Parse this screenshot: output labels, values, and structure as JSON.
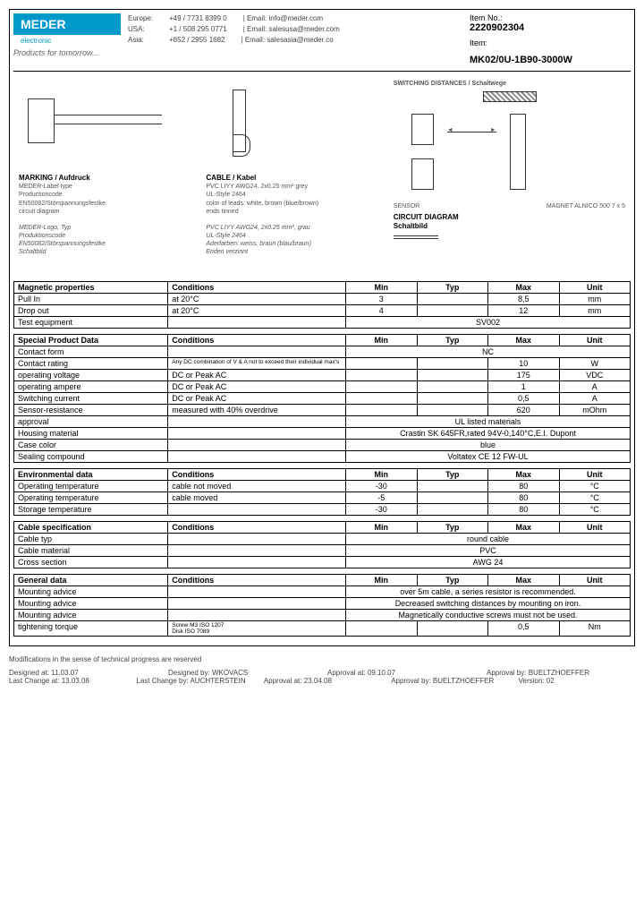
{
  "header": {
    "logo": "MEDER",
    "logo_sub": "electronic",
    "tagline": "Products for tomorrow...",
    "contacts": [
      {
        "region": "Europe:",
        "phone": "+49 / 7731 8399 0",
        "email": "Email: info@meder.com"
      },
      {
        "region": "USA:",
        "phone": "+1 / 508 295 0771",
        "email": "Email: salesusa@meder.com"
      },
      {
        "region": "Asia:",
        "phone": "+852 / 2955 1682",
        "email": "Email: salesasia@meder.co"
      }
    ],
    "item_no_label": "Item No.:",
    "item_no": "2220902304",
    "item_label": "Item:",
    "item_name": "MK02/0U-1B90-3000W"
  },
  "diagrams": {
    "marking_title": "MARKING / Aufdruck",
    "marking_text": "MEDER-Label type\nProductioncode\nEN50082/Störspannungsfestke\ncircuit diagram",
    "marking_text2": "MEDER-Logo, Typ\nProduktionscode\nEN50082/Störspannungsfestke\nSchaltbild",
    "cable_title": "CABLE / Kabel",
    "cable_text": "PVC LIYY AWG24, 2x0.25 mm² grey\nUL-Style 2464\ncolor of leads: white, brown (blue/brown)\nends tinned",
    "cable_text2": "PVC LIYY AWG24, 2x0.25 mm², grau\nUL-Style 2464\nAderfarben: weiss, braun (blau/braun)\nEnden verzinnt",
    "switching_title": "SWITCHING DISTANCES / Schaltwege",
    "circuit_title": "CIRCUIT DIAGRAM\nSchaltbild",
    "sensor_label": "SENSOR",
    "magnet_label": "MAGNET ALNICO 500 7 x 5"
  },
  "tables": [
    {
      "title": "Magnetic properties",
      "rows": [
        {
          "param": "Pull In",
          "cond": "at 20°C",
          "min": "3",
          "typ": "",
          "max": "8,5",
          "unit": "mm"
        },
        {
          "param": "Drop out",
          "cond": "at 20°C",
          "min": "4",
          "typ": "",
          "max": "12",
          "unit": "mm"
        },
        {
          "param": "Test equipment",
          "cond": "",
          "span": "SV002"
        }
      ]
    },
    {
      "title": "Special Product Data",
      "rows": [
        {
          "param": "Contact form",
          "cond": "",
          "span": "NC"
        },
        {
          "param": "Contact rating",
          "cond": "Any DC combination of V & A not to exceed their individual max's",
          "min": "",
          "typ": "",
          "max": "10",
          "unit": "W"
        },
        {
          "param": "operating voltage",
          "cond": "DC or Peak AC",
          "min": "",
          "typ": "",
          "max": "175",
          "unit": "VDC"
        },
        {
          "param": "operating ampere",
          "cond": "DC or Peak AC",
          "min": "",
          "typ": "",
          "max": "1",
          "unit": "A"
        },
        {
          "param": "Switching current",
          "cond": "DC or Peak AC",
          "min": "",
          "typ": "",
          "max": "0,5",
          "unit": "A"
        },
        {
          "param": "Sensor-resistance",
          "cond": "measured with 40% overdrive",
          "min": "",
          "typ": "",
          "max": "620",
          "unit": "mOhm"
        },
        {
          "param": "approval",
          "cond": "",
          "span": "UL listed materials"
        },
        {
          "param": "Housing material",
          "cond": "",
          "span": "Crastin SK 645FR,rated 94V-0,140°C,E.I. Dupont"
        },
        {
          "param": "Case color",
          "cond": "",
          "span": "blue"
        },
        {
          "param": "Sealing compound",
          "cond": "",
          "span": "Voltatex CE 12 FW-UL"
        }
      ]
    },
    {
      "title": "Environmental data",
      "rows": [
        {
          "param": "Operating temperature",
          "cond": "cable not moved",
          "min": "-30",
          "typ": "",
          "max": "80",
          "unit": "°C"
        },
        {
          "param": "Operating temperature",
          "cond": "cable moved",
          "min": "-5",
          "typ": "",
          "max": "80",
          "unit": "°C"
        },
        {
          "param": "Storage temperature",
          "cond": "",
          "min": "-30",
          "typ": "",
          "max": "80",
          "unit": "°C"
        }
      ]
    },
    {
      "title": "Cable specification",
      "rows": [
        {
          "param": "Cable typ",
          "cond": "",
          "span": "round cable"
        },
        {
          "param": "Cable material",
          "cond": "",
          "span": "PVC"
        },
        {
          "param": "Cross section",
          "cond": "",
          "span": "AWG 24"
        }
      ]
    },
    {
      "title": "General data",
      "rows": [
        {
          "param": "Mounting advice",
          "cond": "",
          "span": "over 5m cable, a series resistor is recommended."
        },
        {
          "param": "Mounting advice",
          "cond": "",
          "span": "Decreased switching distances by mounting on iron."
        },
        {
          "param": "Mounting advice",
          "cond": "",
          "span": "Magnetically conductive screws must not be used."
        },
        {
          "param": "tightening torque",
          "cond": "Screw M3 ISO 1207\nDisk ISO 7089",
          "min": "",
          "typ": "",
          "max": "0,5",
          "unit": "Nm"
        }
      ]
    }
  ],
  "columns": {
    "cond": "Conditions",
    "min": "Min",
    "typ": "Typ",
    "max": "Max",
    "unit": "Unit"
  },
  "footer": {
    "note": "Modifications in the sense of technical progress are reserved",
    "row1": {
      "a": "Designed at:",
      "av": "11.03.07",
      "b": "Designed by:",
      "bv": "WKOVACS",
      "c": "Approval at:",
      "cv": "09.10.07",
      "d": "Approval by:",
      "dv": "BUELTZHOEFFER"
    },
    "row2": {
      "a": "Last Change at:",
      "av": "13.03.08",
      "b": "Last Change by:",
      "bv": "AUCHTERSTEIN",
      "c": "Approval at:",
      "cv": "23.04.08",
      "d": "Approval by:",
      "dv": "BUELTZHOEFFER",
      "e": "Version:",
      "ev": "02"
    }
  }
}
